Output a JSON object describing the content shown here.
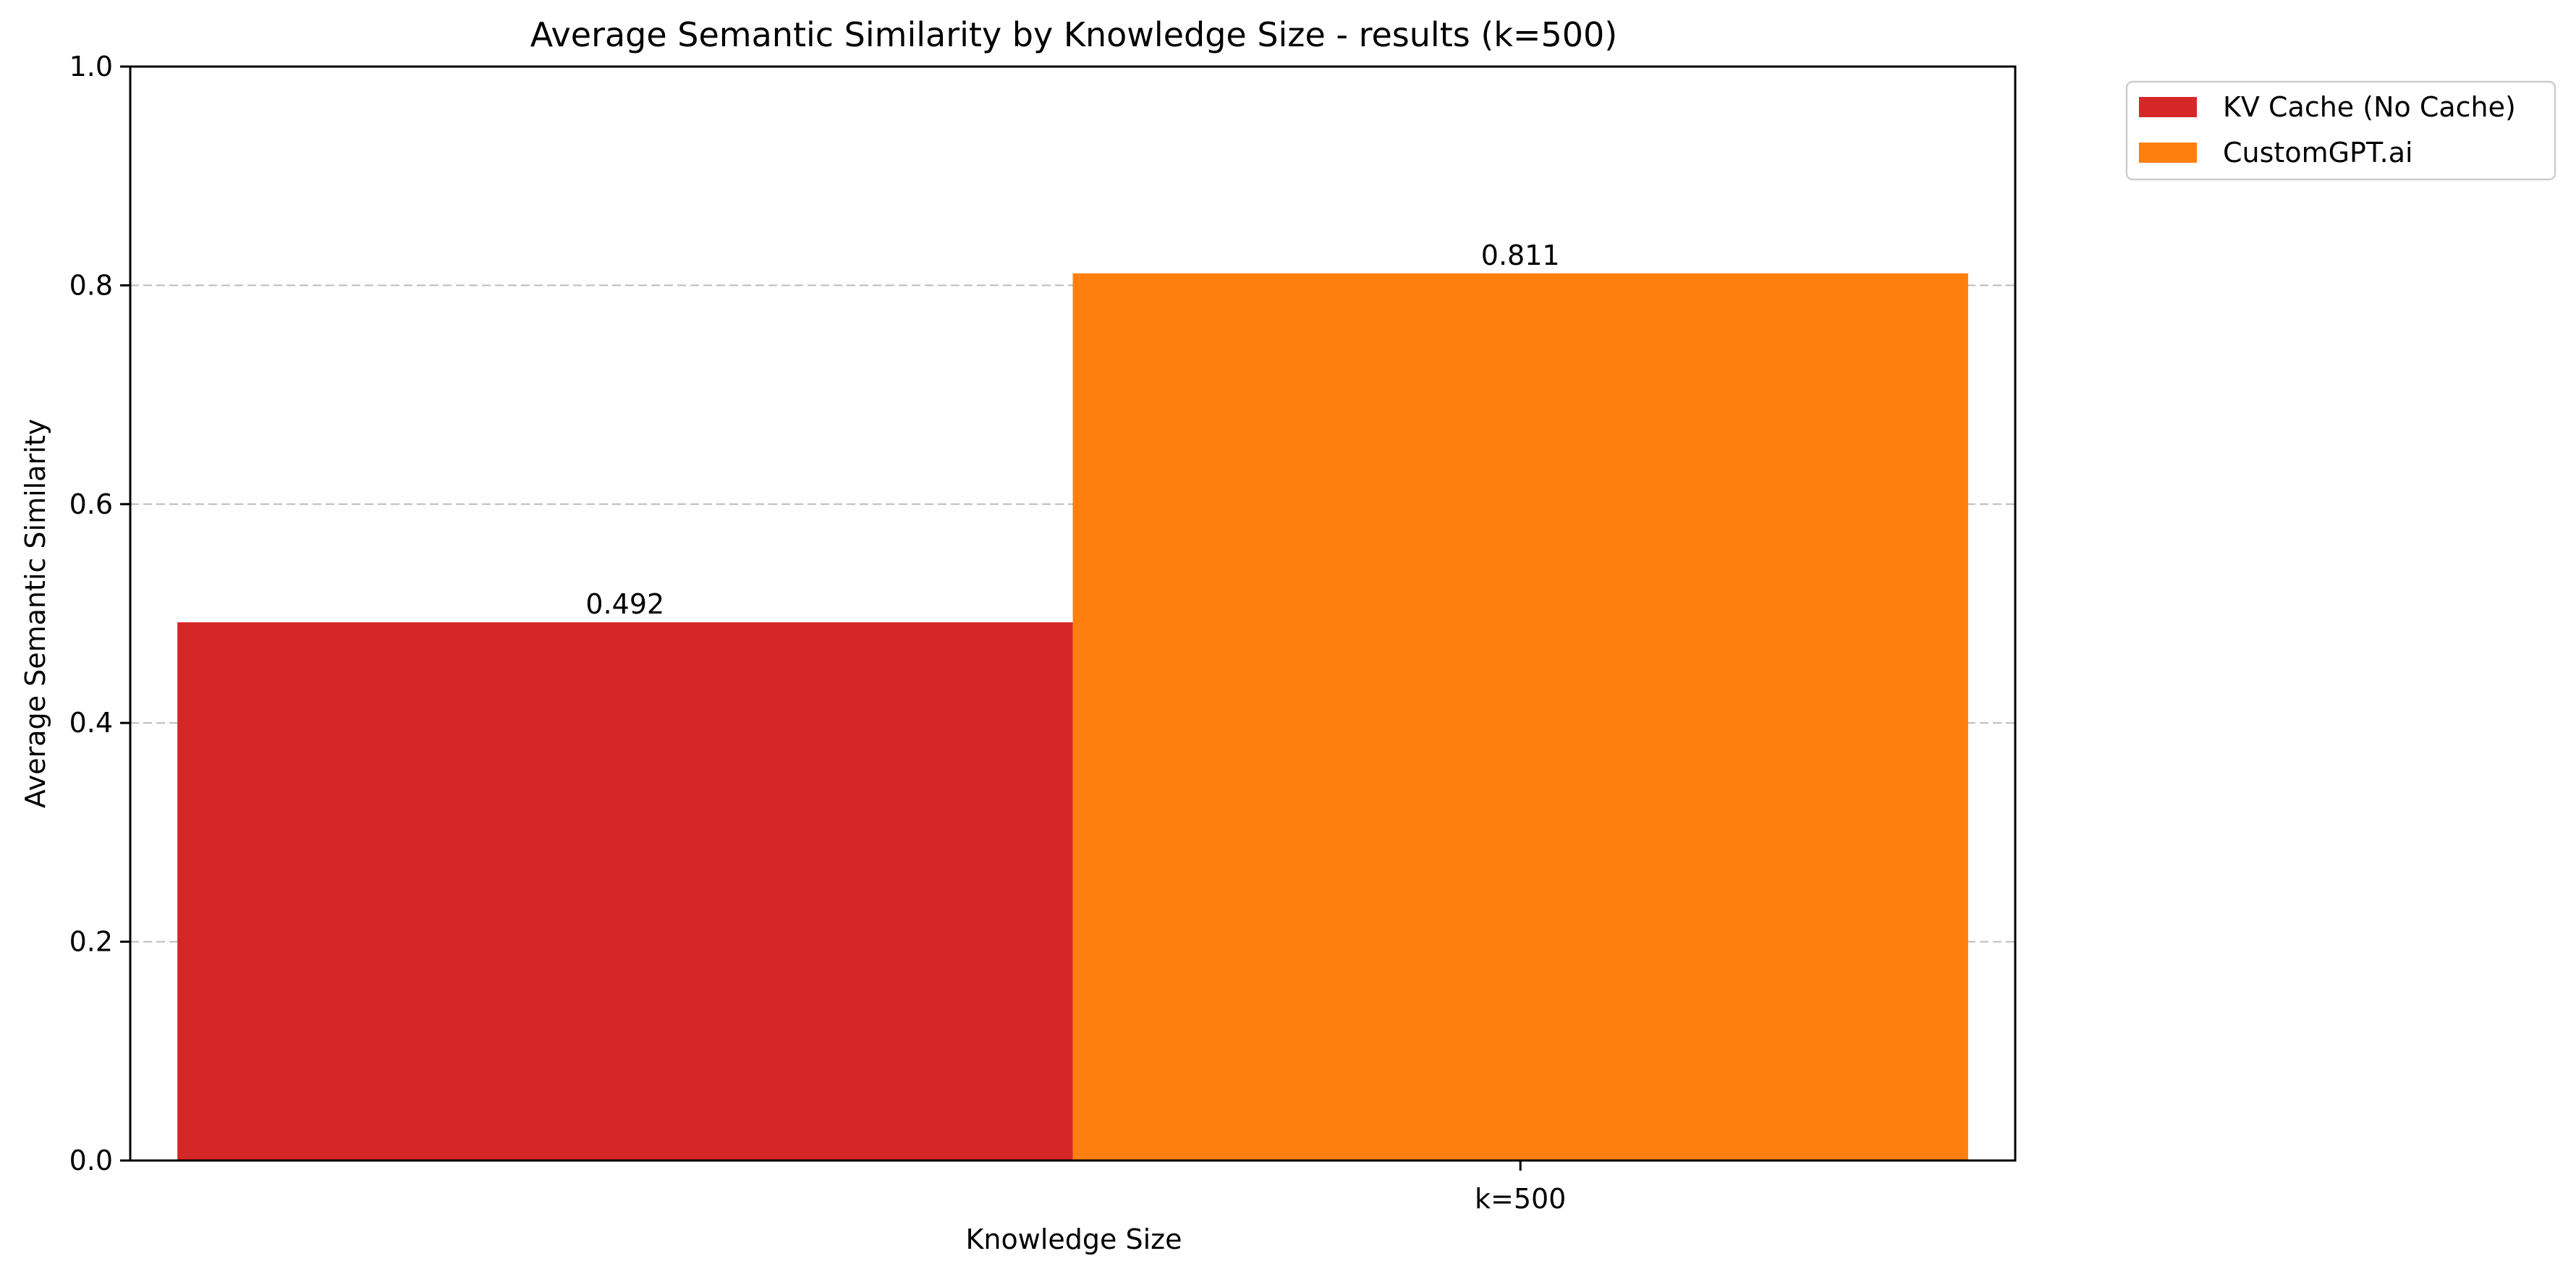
{
  "chart_data": {
    "type": "bar",
    "title": "Average Semantic Similarity by Knowledge Size - results (k=500)",
    "xlabel": "Knowledge Size",
    "ylabel": "Average Semantic Similarity",
    "categories": [
      "k=500"
    ],
    "ylim": [
      0,
      1.0
    ],
    "yticks": [
      "0.0",
      "0.2",
      "0.4",
      "0.6",
      "0.8",
      "1.0"
    ],
    "grid": "horizontal dashed",
    "legend_position": "outside-top-right",
    "series": [
      {
        "name": "KV Cache (No Cache)",
        "values": [
          0.492
        ],
        "labels": [
          "0.492"
        ],
        "color": "#d62728"
      },
      {
        "name": "CustomGPT.ai",
        "values": [
          0.811
        ],
        "labels": [
          "0.811"
        ],
        "color": "#ff7f0e"
      }
    ]
  }
}
